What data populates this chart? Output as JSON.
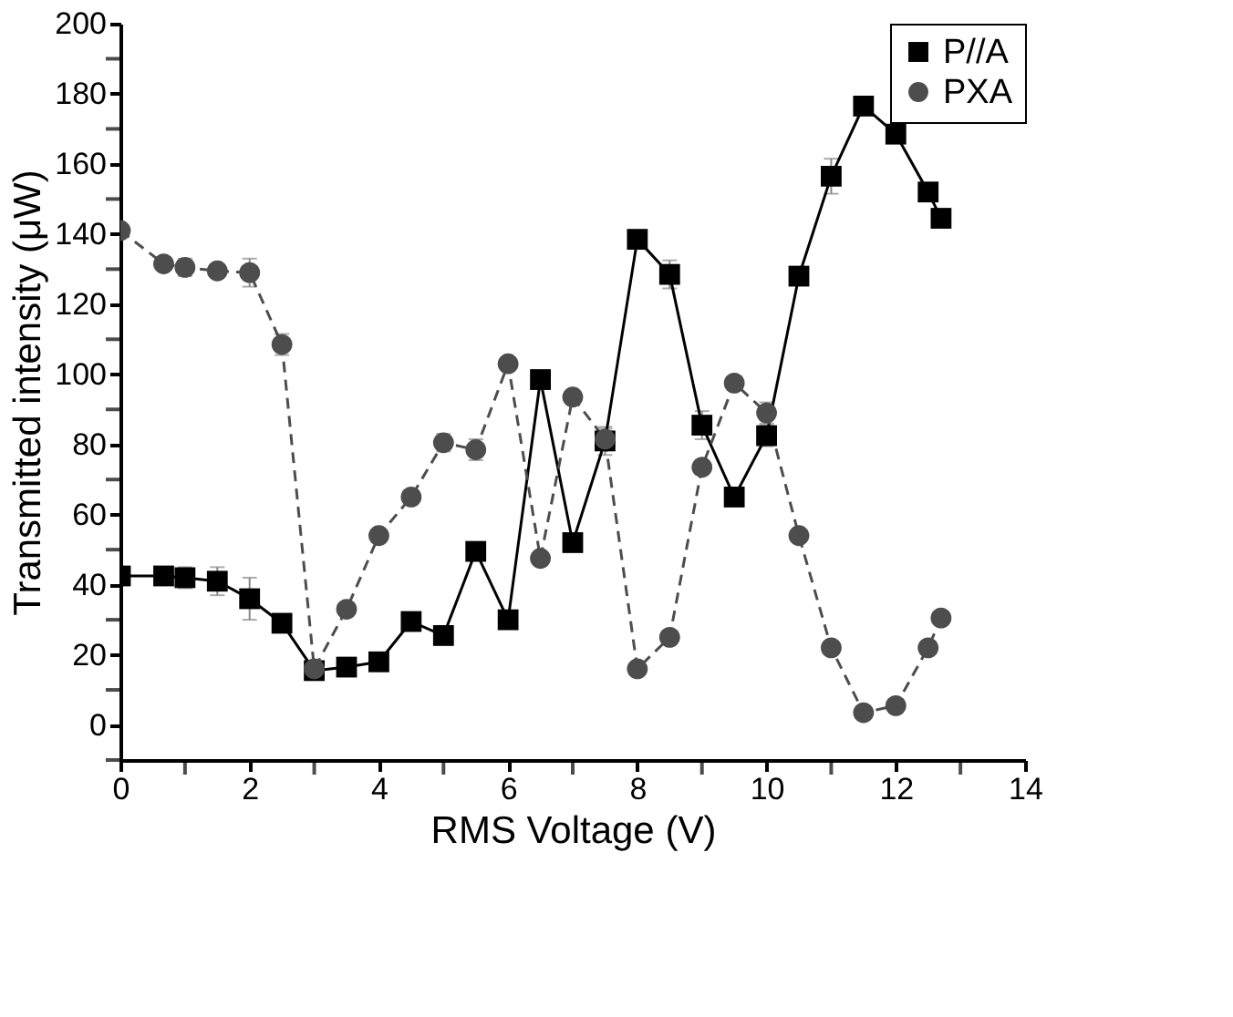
{
  "chart_data": {
    "type": "line",
    "xlabel": "RMS Voltage (V)",
    "ylabel": "Transmitted intensity (μW)",
    "xlim": [
      0,
      14
    ],
    "ylim": [
      -10,
      200
    ],
    "xticks": [
      0,
      {
        "value": 1,
        "label": null
      },
      2,
      {
        "value": 3,
        "label": null
      },
      4,
      {
        "value": 5,
        "label": null
      },
      6,
      {
        "value": 7,
        "label": null
      },
      8,
      {
        "value": 9,
        "label": null
      },
      10,
      {
        "value": 11,
        "label": null
      },
      12,
      {
        "value": 13,
        "label": null
      },
      14
    ],
    "yticks": [
      {
        "value": -10,
        "label": null
      },
      0,
      {
        "value": 10,
        "label": null
      },
      20,
      {
        "value": 30,
        "label": null
      },
      40,
      {
        "value": 50,
        "label": null
      },
      60,
      {
        "value": 70,
        "label": null
      },
      80,
      {
        "value": 90,
        "label": null
      },
      100,
      {
        "value": 110,
        "label": null
      },
      120,
      {
        "value": 130,
        "label": null
      },
      140,
      {
        "value": 150,
        "label": null
      },
      160,
      {
        "value": 170,
        "label": null
      },
      180,
      {
        "value": 190,
        "label": null
      },
      200
    ],
    "legend": "top right",
    "grid": false,
    "series": [
      {
        "name": "P//A",
        "color": "#000000",
        "marker": "square",
        "line_style": "solid",
        "x": [
          0,
          0.67,
          1,
          1.5,
          2,
          2.5,
          3,
          3.5,
          4,
          4.5,
          5,
          5.5,
          6,
          6.5,
          7,
          7.5,
          8,
          8.5,
          9,
          9.5,
          10,
          10.5,
          11,
          11.5,
          12,
          12.5,
          12.7
        ],
        "values": [
          42.5,
          42.5,
          42,
          41,
          36,
          29,
          15.5,
          16.5,
          18,
          29.5,
          25.5,
          49.5,
          30,
          98.5,
          52,
          81,
          138.5,
          128.5,
          85.5,
          65,
          82.5,
          128,
          156.5,
          176.5,
          168.5,
          152,
          144.5
        ],
        "errors": [
          null,
          null,
          3,
          4,
          6,
          null,
          null,
          null,
          null,
          null,
          null,
          null,
          null,
          null,
          null,
          4,
          null,
          4,
          4,
          null,
          3,
          null,
          5,
          null,
          null,
          null,
          null
        ]
      },
      {
        "name": "PXA",
        "color": "#4d4d4d",
        "marker": "circle",
        "line_style": "dashed",
        "x": [
          0,
          0.67,
          1,
          1.5,
          2,
          2.5,
          3,
          3.5,
          4,
          4.5,
          5,
          5.5,
          6,
          6.5,
          7,
          7.5,
          8,
          8.5,
          9,
          9.5,
          10,
          10.5,
          11,
          11.5,
          12,
          12.5,
          12.7
        ],
        "values": [
          141,
          131.5,
          130.5,
          129.5,
          129,
          108.5,
          16,
          33,
          54,
          65,
          80.5,
          78.5,
          103,
          47.5,
          93.5,
          81.5,
          16,
          25,
          73.5,
          97.5,
          89,
          54,
          22,
          3.5,
          5.5,
          22,
          30.5
        ],
        "errors": [
          null,
          null,
          2.5,
          null,
          4,
          3,
          null,
          null,
          null,
          null,
          2.5,
          3,
          null,
          null,
          null,
          3,
          null,
          null,
          null,
          null,
          3,
          null,
          null,
          null,
          null,
          null,
          null
        ]
      }
    ]
  }
}
